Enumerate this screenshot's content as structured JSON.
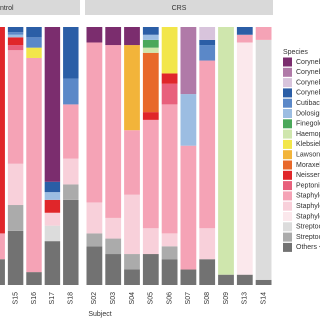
{
  "chart_data": {
    "type": "stacked_bar",
    "x_label": "Subject",
    "legend_title": "Species",
    "ylim": [
      0,
      1
    ],
    "facets": [
      {
        "title": "ntrol",
        "categories": [
          null,
          "S15",
          "S16",
          "S17",
          "S18"
        ]
      },
      {
        "title": "CRS",
        "categories": [
          "S02",
          "S03",
          "S04",
          "S05",
          "S06",
          "S07",
          "S08",
          "S09",
          "S13",
          "S14"
        ]
      }
    ],
    "series": [
      {
        "name": "Coryneba",
        "color": "#7b2d6e",
        "values": [
          0,
          0,
          0,
          0.6,
          0,
          0.06,
          0.07,
          0.07,
          0,
          0,
          0,
          0,
          0,
          0,
          0
        ]
      },
      {
        "name": "Coryneba",
        "color": "#b07aa8",
        "values": [
          0,
          0,
          0,
          0,
          0,
          0,
          0,
          0,
          0,
          0,
          0.26,
          0,
          0,
          0,
          0
        ]
      },
      {
        "name": "Coryneba",
        "color": "#d8c4dc",
        "values": [
          0,
          0,
          0,
          0,
          0,
          0,
          0,
          0,
          0,
          0,
          0,
          0.05,
          0,
          0,
          0
        ]
      },
      {
        "name": "Coryneba",
        "color": "#2b5ea6",
        "values": [
          0,
          0.02,
          0.04,
          0.04,
          0.2,
          0,
          0,
          0,
          0.03,
          0,
          0,
          0.02,
          0,
          0.03,
          0
        ]
      },
      {
        "name": "Cutibacte",
        "color": "#5b88c8",
        "values": [
          0,
          0.01,
          0.04,
          0,
          0.1,
          0,
          0,
          0,
          0,
          0,
          0,
          0.06,
          0,
          0,
          0
        ]
      },
      {
        "name": "Dolosigra",
        "color": "#9cbde2",
        "values": [
          0,
          0.01,
          0,
          0.03,
          0,
          0,
          0,
          0,
          0.02,
          0,
          0.2,
          0,
          0,
          0,
          0
        ]
      },
      {
        "name": "Finegolc",
        "color": "#4aa85a",
        "values": [
          0,
          0,
          0,
          0,
          0,
          0,
          0,
          0,
          0.03,
          0,
          0,
          0,
          0,
          0,
          0
        ]
      },
      {
        "name": "Haemophi",
        "color": "#cfe6ad",
        "values": [
          0,
          0,
          0,
          0,
          0,
          0,
          0,
          0,
          0.02,
          0,
          0,
          0,
          0.96,
          0,
          0
        ]
      },
      {
        "name": "Klebsiella",
        "color": "#f2e64a",
        "values": [
          0,
          0,
          0.04,
          0,
          0,
          0,
          0,
          0,
          0,
          0.18,
          0,
          0,
          0,
          0,
          0
        ]
      },
      {
        "name": "Lawsonel",
        "color": "#f2b43a",
        "values": [
          0,
          0,
          0,
          0,
          0,
          0,
          0,
          0.33,
          0,
          0,
          0,
          0,
          0,
          0,
          0
        ]
      },
      {
        "name": "Moraxella",
        "color": "#e8682a",
        "values": [
          0,
          0,
          0,
          0,
          0,
          0,
          0,
          0,
          0.23,
          0,
          0,
          0,
          0,
          0,
          0
        ]
      },
      {
        "name": "Neisseria",
        "color": "#e0262a",
        "values": [
          0.8,
          0.03,
          0,
          0.05,
          0,
          0,
          0,
          0,
          0.03,
          0.04,
          0,
          0,
          0,
          0,
          0
        ]
      },
      {
        "name": "Peptonipl",
        "color": "#e8607c",
        "values": [
          0,
          0.02,
          0,
          0,
          0,
          0,
          0,
          0,
          0,
          0.08,
          0,
          0,
          0,
          0,
          0
        ]
      },
      {
        "name": "Staphyloc",
        "color": "#f5a3b6",
        "values": [
          0.1,
          0.44,
          0.83,
          0,
          0.21,
          0.62,
          0.67,
          0.25,
          0.42,
          0.5,
          0.48,
          0.65,
          0,
          0.03,
          0.05
        ]
      },
      {
        "name": "Staphyloc",
        "color": "#f8d0da",
        "values": [
          0,
          0.16,
          0,
          0.05,
          0.1,
          0.12,
          0.08,
          0.23,
          0.1,
          0.05,
          0,
          0.12,
          0,
          0,
          0
        ]
      },
      {
        "name": "Staphyloc",
        "color": "#fbe8ec",
        "values": [
          0,
          0,
          0,
          0,
          0,
          0,
          0,
          0,
          0,
          0,
          0,
          0,
          0,
          0.9,
          0
        ]
      },
      {
        "name": "Streptoco",
        "color": "#dcdcdc",
        "values": [
          0,
          0,
          0,
          0.06,
          0,
          0,
          0,
          0,
          0,
          0,
          0,
          0,
          0,
          0,
          0.93
        ]
      },
      {
        "name": "Streptoco",
        "color": "#ababab",
        "values": [
          0,
          0.1,
          0,
          0,
          0.06,
          0.05,
          0.06,
          0.06,
          0,
          0.05,
          0,
          0,
          0,
          0,
          0
        ]
      },
      {
        "name": "Others <",
        "color": "#727272",
        "values": [
          0.1,
          0.21,
          0.05,
          0.17,
          0.33,
          0.15,
          0.12,
          0.06,
          0.12,
          0.1,
          0.06,
          0.1,
          0.04,
          0.04,
          0.02
        ]
      }
    ]
  }
}
